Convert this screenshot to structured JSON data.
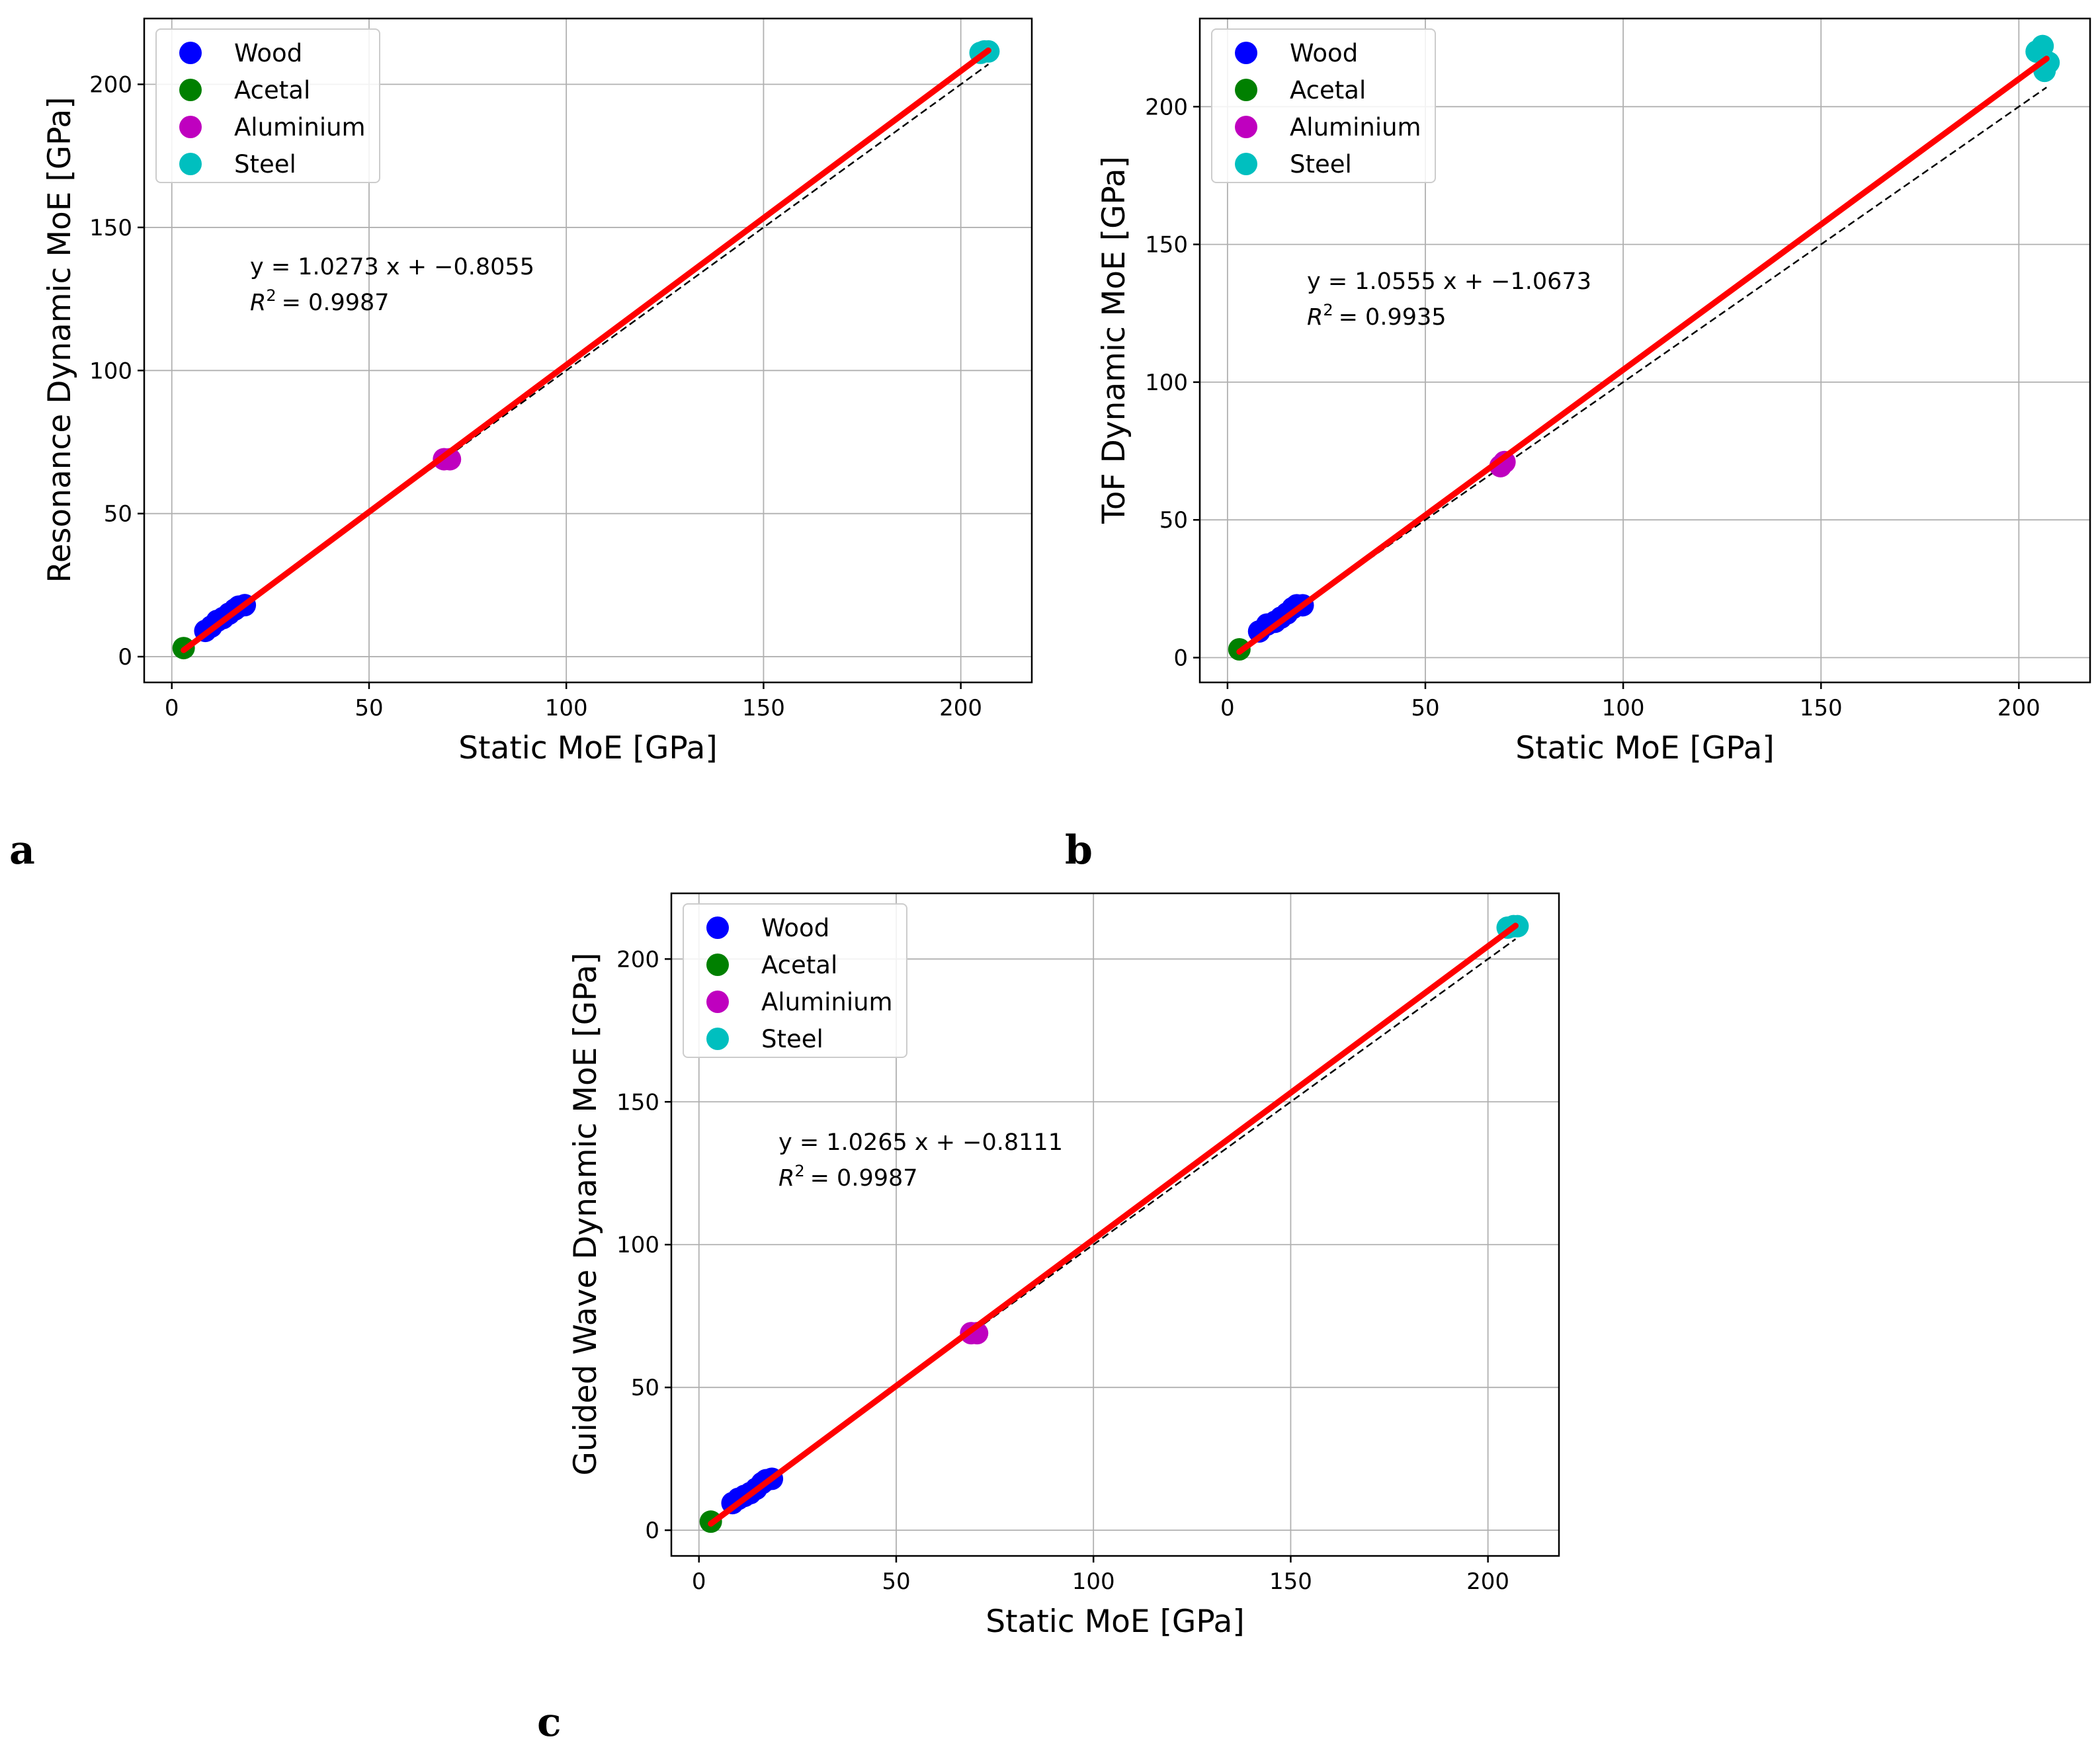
{
  "panel_labels": [
    "a",
    "b",
    "c"
  ],
  "legend": [
    {
      "name": "Wood",
      "color": "#0000ff"
    },
    {
      "name": "Acetal",
      "color": "#008000"
    },
    {
      "name": "Aluminium",
      "color": "#bf00bf"
    },
    {
      "name": "Steel",
      "color": "#00bfbf"
    }
  ],
  "fit_color": "#ff0000",
  "identity_color": "#000000",
  "chart_data": [
    {
      "type": "scatter",
      "panel": "a",
      "xlabel": "Static MoE [GPa]",
      "ylabel": "Resonance Dynamic MoE [GPa]",
      "xlim": [
        -7,
        218
      ],
      "ylim": [
        -9,
        223
      ],
      "xticks": [
        0,
        50,
        100,
        150,
        200
      ],
      "yticks": [
        0,
        50,
        100,
        150,
        200
      ],
      "grid": true,
      "legend_position": "top-left",
      "equation": "y   = 1.0273 x + −0.8055",
      "r2_value": "= 0.9987",
      "fit": {
        "slope": 1.0273,
        "intercept": -0.8055,
        "x_range": [
          3,
          207
        ]
      },
      "identity_range": [
        3,
        207
      ],
      "series": [
        {
          "name": "Wood",
          "x": [
            8.5,
            10,
            11.5,
            13,
            14.5,
            16,
            17,
            18.5
          ],
          "y": [
            9,
            10.5,
            12.5,
            13.5,
            15,
            16.5,
            17.5,
            18
          ]
        },
        {
          "name": "Acetal",
          "x": [
            3
          ],
          "y": [
            3
          ]
        },
        {
          "name": "Aluminium",
          "x": [
            69,
            70.5
          ],
          "y": [
            69,
            69
          ]
        },
        {
          "name": "Steel",
          "x": [
            205,
            206,
            207
          ],
          "y": [
            211,
            211.5,
            211.5
          ]
        }
      ]
    },
    {
      "type": "scatter",
      "panel": "b",
      "xlabel": "Static MoE [GPa]",
      "ylabel": "ToF Dynamic MoE [GPa]",
      "xlim": [
        -7,
        218
      ],
      "ylim": [
        -9,
        232
      ],
      "xticks": [
        0,
        50,
        100,
        150,
        200
      ],
      "yticks": [
        0,
        50,
        100,
        150,
        200
      ],
      "grid": true,
      "legend_position": "top-left",
      "equation": "y   = 1.0555 x + −1.0673",
      "r2_value": "= 0.9935",
      "fit": {
        "slope": 1.0555,
        "intercept": -1.0673,
        "x_range": [
          3,
          207
        ]
      },
      "identity_range": [
        3,
        207
      ],
      "series": [
        {
          "name": "Wood",
          "x": [
            8,
            10,
            12,
            13.5,
            15,
            16.5,
            17.5,
            19
          ],
          "y": [
            9.5,
            12,
            13,
            14.5,
            16,
            18,
            19,
            19
          ]
        },
        {
          "name": "Acetal",
          "x": [
            3
          ],
          "y": [
            3
          ]
        },
        {
          "name": "Aluminium",
          "x": [
            69,
            70
          ],
          "y": [
            69.5,
            71
          ]
        },
        {
          "name": "Steel",
          "x": [
            204.5,
            206,
            206.5,
            207.5
          ],
          "y": [
            220,
            222,
            213,
            216
          ]
        }
      ]
    },
    {
      "type": "scatter",
      "panel": "c",
      "xlabel": "Static MoE [GPa]",
      "ylabel": "Guided Wave Dynamic MoE [GPa]",
      "xlim": [
        -7,
        218
      ],
      "ylim": [
        -9,
        223
      ],
      "xticks": [
        0,
        50,
        100,
        150,
        200
      ],
      "yticks": [
        0,
        50,
        100,
        150,
        200
      ],
      "grid": true,
      "legend_position": "top-left",
      "equation": "y   = 1.0265 x + −0.8111",
      "r2_value": "= 0.9987",
      "fit": {
        "slope": 1.0265,
        "intercept": -0.8111,
        "x_range": [
          3,
          207
        ]
      },
      "identity_range": [
        3,
        207
      ],
      "series": [
        {
          "name": "Wood",
          "x": [
            8.5,
            10,
            11.5,
            13,
            14.5,
            16,
            17,
            18.5
          ],
          "y": [
            9.5,
            11,
            12,
            13,
            14.5,
            16.5,
            17.5,
            18
          ]
        },
        {
          "name": "Acetal",
          "x": [
            3
          ],
          "y": [
            3
          ]
        },
        {
          "name": "Aluminium",
          "x": [
            69,
            70.5
          ],
          "y": [
            69,
            69
          ]
        },
        {
          "name": "Steel",
          "x": [
            205,
            206.5,
            207.5
          ],
          "y": [
            211,
            211.5,
            211.5
          ]
        }
      ]
    }
  ]
}
